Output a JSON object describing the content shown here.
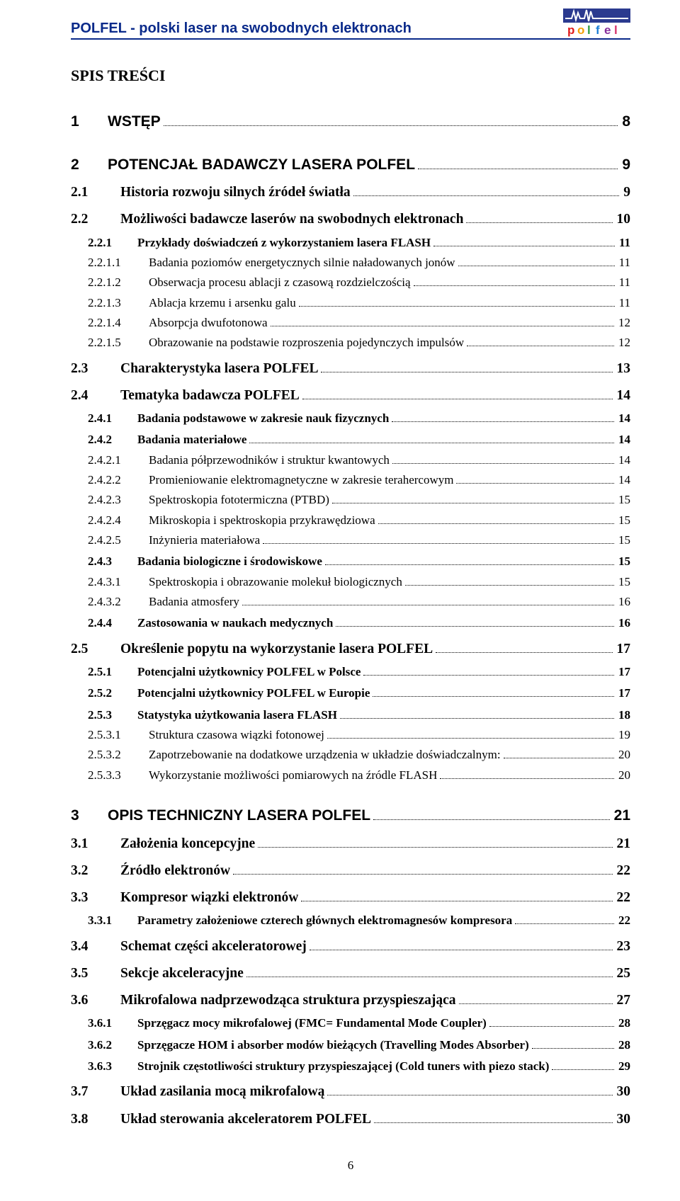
{
  "colors": {
    "header": "#0a2a8a",
    "text": "#000000",
    "logo_bg": "#2b3a8f",
    "logo_signal": "#ffffff",
    "logo_p": "#e01b1b",
    "logo_o": "#f59f00",
    "logo_l": "#2f9e44",
    "logo_f": "#1c7ed6",
    "logo_e": "#862e9c",
    "logo_l2": "#d6336c"
  },
  "header": {
    "title": "POLFEL - polski laser na swobodnych elektronach",
    "logo_top": "pol",
    "logo_bottom": "fel"
  },
  "heading": "SPIS TREŚCI",
  "footer": "6",
  "toc": [
    {
      "lvl": 0,
      "num": "1",
      "txt": "WSTĘP",
      "pg": "8",
      "gap": "lg"
    },
    {
      "lvl": 0,
      "num": "2",
      "txt": "POTENCJAŁ BADAWCZY LASERA POLFEL",
      "pg": "9",
      "gap": "lg"
    },
    {
      "lvl": 1,
      "num": "2.1",
      "txt": "Historia rozwoju silnych źródeł światła",
      "pg": "9"
    },
    {
      "lvl": 1,
      "num": "2.2",
      "txt": "Możliwości badawcze laserów na swobodnych elektronach",
      "pg": "10"
    },
    {
      "lvl": 2,
      "num": "2.2.1",
      "txt": "Przykłady doświadczeń z wykorzystaniem lasera FLASH",
      "pg": "11"
    },
    {
      "lvl": 3,
      "num": "2.2.1.1",
      "txt": "Badania poziomów energetycznych silnie naładowanych jonów",
      "pg": "11"
    },
    {
      "lvl": 3,
      "num": "2.2.1.2",
      "txt": "Obserwacja procesu ablacji z czasową rozdzielczością",
      "pg": "11"
    },
    {
      "lvl": 3,
      "num": "2.2.1.3",
      "txt": "Ablacja krzemu i arsenku galu",
      "pg": "11"
    },
    {
      "lvl": 3,
      "num": "2.2.1.4",
      "txt": "Absorpcja dwufotonowa",
      "pg": "12"
    },
    {
      "lvl": 3,
      "num": "2.2.1.5",
      "txt": "Obrazowanie na podstawie rozproszenia pojedynczych impulsów",
      "pg": "12"
    },
    {
      "lvl": 1,
      "num": "2.3",
      "txt": "Charakterystyka lasera POLFEL",
      "pg": "13"
    },
    {
      "lvl": 1,
      "num": "2.4",
      "txt": "Tematyka badawcza POLFEL",
      "pg": "14"
    },
    {
      "lvl": 2,
      "num": "2.4.1",
      "txt": "Badania podstawowe w zakresie nauk fizycznych",
      "pg": "14"
    },
    {
      "lvl": 2,
      "num": "2.4.2",
      "txt": "Badania materiałowe",
      "pg": "14"
    },
    {
      "lvl": 3,
      "num": "2.4.2.1",
      "txt": "Badania półprzewodników i struktur kwantowych",
      "pg": "14"
    },
    {
      "lvl": 3,
      "num": "2.4.2.2",
      "txt": "Promieniowanie elektromagnetyczne w zakresie terahercowym",
      "pg": "14"
    },
    {
      "lvl": 3,
      "num": "2.4.2.3",
      "txt": "Spektroskopia fototermiczna (PTBD)",
      "pg": "15"
    },
    {
      "lvl": 3,
      "num": "2.4.2.4",
      "txt": "Mikroskopia i spektroskopia przykrawędziowa",
      "pg": "15"
    },
    {
      "lvl": 3,
      "num": "2.4.2.5",
      "txt": "Inżynieria materiałowa",
      "pg": "15"
    },
    {
      "lvl": 2,
      "num": "2.4.3",
      "txt": "Badania biologiczne i środowiskowe",
      "pg": "15"
    },
    {
      "lvl": 3,
      "num": "2.4.3.1",
      "txt": "Spektroskopia i obrazowanie molekuł biologicznych",
      "pg": "15"
    },
    {
      "lvl": 3,
      "num": "2.4.3.2",
      "txt": "Badania atmosfery",
      "pg": "16"
    },
    {
      "lvl": 2,
      "num": "2.4.4",
      "txt": "Zastosowania w naukach medycznych",
      "pg": "16"
    },
    {
      "lvl": 1,
      "num": "2.5",
      "txt": "Określenie popytu na wykorzystanie lasera POLFEL",
      "pg": "17"
    },
    {
      "lvl": 2,
      "num": "2.5.1",
      "txt": "Potencjalni użytkownicy POLFEL w Polsce",
      "pg": "17"
    },
    {
      "lvl": 2,
      "num": "2.5.2",
      "txt": "Potencjalni użytkownicy POLFEL w Europie",
      "pg": "17"
    },
    {
      "lvl": 2,
      "num": "2.5.3",
      "txt": "Statystyka użytkowania lasera FLASH",
      "pg": "18"
    },
    {
      "lvl": 3,
      "num": "2.5.3.1",
      "txt": "Struktura czasowa wiązki fotonowej",
      "pg": "19"
    },
    {
      "lvl": 3,
      "num": "2.5.3.2",
      "txt": "Zapotrzebowanie na dodatkowe urządzenia w układzie doświadczalnym:",
      "pg": "20"
    },
    {
      "lvl": 3,
      "num": "2.5.3.3",
      "txt": "Wykorzystanie możliwości pomiarowych na źródle FLASH",
      "pg": "20"
    },
    {
      "lvl": 0,
      "num": "3",
      "txt": "OPIS TECHNICZNY LASERA POLFEL",
      "pg": "21",
      "gap": "lg"
    },
    {
      "lvl": 1,
      "num": "3.1",
      "txt": "Założenia koncepcyjne",
      "pg": "21"
    },
    {
      "lvl": 1,
      "num": "3.2",
      "txt": "Źródło elektronów",
      "pg": "22"
    },
    {
      "lvl": 1,
      "num": "3.3",
      "txt": "Kompresor wiązki elektronów",
      "pg": "22"
    },
    {
      "lvl": 2,
      "num": "3.3.1",
      "txt": "Parametry założeniowe czterech głównych elektromagnesów kompresora",
      "pg": "22"
    },
    {
      "lvl": 1,
      "num": "3.4",
      "txt": "Schemat części akceleratorowej",
      "pg": "23"
    },
    {
      "lvl": 1,
      "num": "3.5",
      "txt": "Sekcje akceleracyjne",
      "pg": "25"
    },
    {
      "lvl": 1,
      "num": "3.6",
      "txt": "Mikrofalowa nadprzewodząca struktura przyspieszająca",
      "pg": "27"
    },
    {
      "lvl": 2,
      "num": "3.6.1",
      "txt": "Sprzęgacz mocy mikrofalowej (FMC= Fundamental Mode Coupler)",
      "pg": "28"
    },
    {
      "lvl": 2,
      "num": "3.6.2",
      "txt": "Sprzęgacze HOM i absorber modów bieżących (Travelling Modes Absorber)",
      "pg": "28"
    },
    {
      "lvl": 2,
      "num": "3.6.3",
      "txt": "Strojnik częstotliwości struktury przyspieszającej (Cold tuners with piezo stack)",
      "pg": "29"
    },
    {
      "lvl": 1,
      "num": "3.7",
      "txt": "Układ zasilania mocą mikrofalową",
      "pg": "30"
    },
    {
      "lvl": 1,
      "num": "3.8",
      "txt": "Układ sterowania akceleratorem POLFEL",
      "pg": "30"
    }
  ]
}
